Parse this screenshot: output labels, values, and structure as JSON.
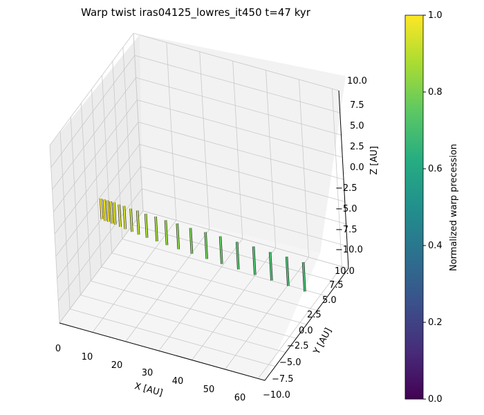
{
  "chart_data": {
    "type": "3d-line-segments",
    "title": "Warp twist iras04125_lowres_it450 t=47 kyr",
    "xlabel": "X [AU]",
    "ylabel": "Y [AU]",
    "zlabel": "Z [AU]",
    "xlim": [
      0,
      62
    ],
    "ylim": [
      -10,
      10
    ],
    "zlim": [
      -10,
      10
    ],
    "x_ticks": [
      "0",
      "10",
      "20",
      "30",
      "40",
      "50",
      "60"
    ],
    "y_ticks": [
      "−10.0",
      "−7.5",
      "−5.0",
      "−2.5",
      "0.0",
      "2.5",
      "5.0",
      "7.5",
      "10.0"
    ],
    "z_ticks": [
      "−10.0",
      "−7.5",
      "−5.0",
      "−2.5",
      "0.0",
      "2.5",
      "5.0",
      "7.5",
      "10.0"
    ],
    "grid": true,
    "segments": [
      {
        "x": 1.0,
        "y": 0,
        "z0": -2.2,
        "z1": -4.5,
        "precession": 1.0
      },
      {
        "x": 2.0,
        "y": 0,
        "z0": -2.2,
        "z1": -4.6,
        "precession": 0.99
      },
      {
        "x": 3.0,
        "y": 0,
        "z0": -2.2,
        "z1": -4.6,
        "precession": 0.98
      },
      {
        "x": 4.0,
        "y": 0,
        "z0": -2.2,
        "z1": -4.7,
        "precession": 0.97
      },
      {
        "x": 5.0,
        "y": 0,
        "z0": -2.2,
        "z1": -4.7,
        "precession": 0.96
      },
      {
        "x": 6.5,
        "y": 0,
        "z0": -2.3,
        "z1": -4.8,
        "precession": 0.94
      },
      {
        "x": 8.0,
        "y": 0,
        "z0": -2.3,
        "z1": -4.9,
        "precession": 0.93
      },
      {
        "x": 10.0,
        "y": 0,
        "z0": -2.4,
        "z1": -5.0,
        "precession": 0.91
      },
      {
        "x": 12.0,
        "y": 0,
        "z0": -2.4,
        "z1": -5.1,
        "precession": 0.89
      },
      {
        "x": 14.5,
        "y": 0,
        "z0": -2.5,
        "z1": -5.2,
        "precession": 0.87
      },
      {
        "x": 17.5,
        "y": 0,
        "z0": -2.5,
        "z1": -5.3,
        "precession": 0.85
      },
      {
        "x": 20.5,
        "y": 0,
        "z0": -2.6,
        "z1": -5.4,
        "precession": 0.83
      },
      {
        "x": 24.0,
        "y": 0,
        "z0": -2.6,
        "z1": -5.5,
        "precession": 0.81
      },
      {
        "x": 28.0,
        "y": 0,
        "z0": -2.7,
        "z1": -5.6,
        "precession": 0.78
      },
      {
        "x": 32.5,
        "y": 0,
        "z0": -2.7,
        "z1": -5.7,
        "precession": 0.76
      },
      {
        "x": 37.0,
        "y": 0,
        "z0": -2.7,
        "z1": -5.8,
        "precession": 0.74
      },
      {
        "x": 42.0,
        "y": 0,
        "z0": -2.8,
        "z1": -5.9,
        "precession": 0.72
      },
      {
        "x": 47.0,
        "y": 0,
        "z0": -2.8,
        "z1": -6.0,
        "precession": 0.7
      },
      {
        "x": 52.0,
        "y": 0,
        "z0": -2.9,
        "z1": -6.1,
        "precession": 0.69
      },
      {
        "x": 57.0,
        "y": 0,
        "z0": -2.9,
        "z1": -6.2,
        "precession": 0.68
      },
      {
        "x": 62.0,
        "y": 0,
        "z0": -3.0,
        "z1": -6.3,
        "precession": 0.67
      }
    ],
    "colorbar": {
      "label": "Normalized warp precession",
      "colormap": "viridis",
      "range": [
        0,
        1
      ],
      "ticks": [
        "0.0",
        "0.2",
        "0.4",
        "0.6",
        "0.8",
        "1.0"
      ]
    }
  }
}
